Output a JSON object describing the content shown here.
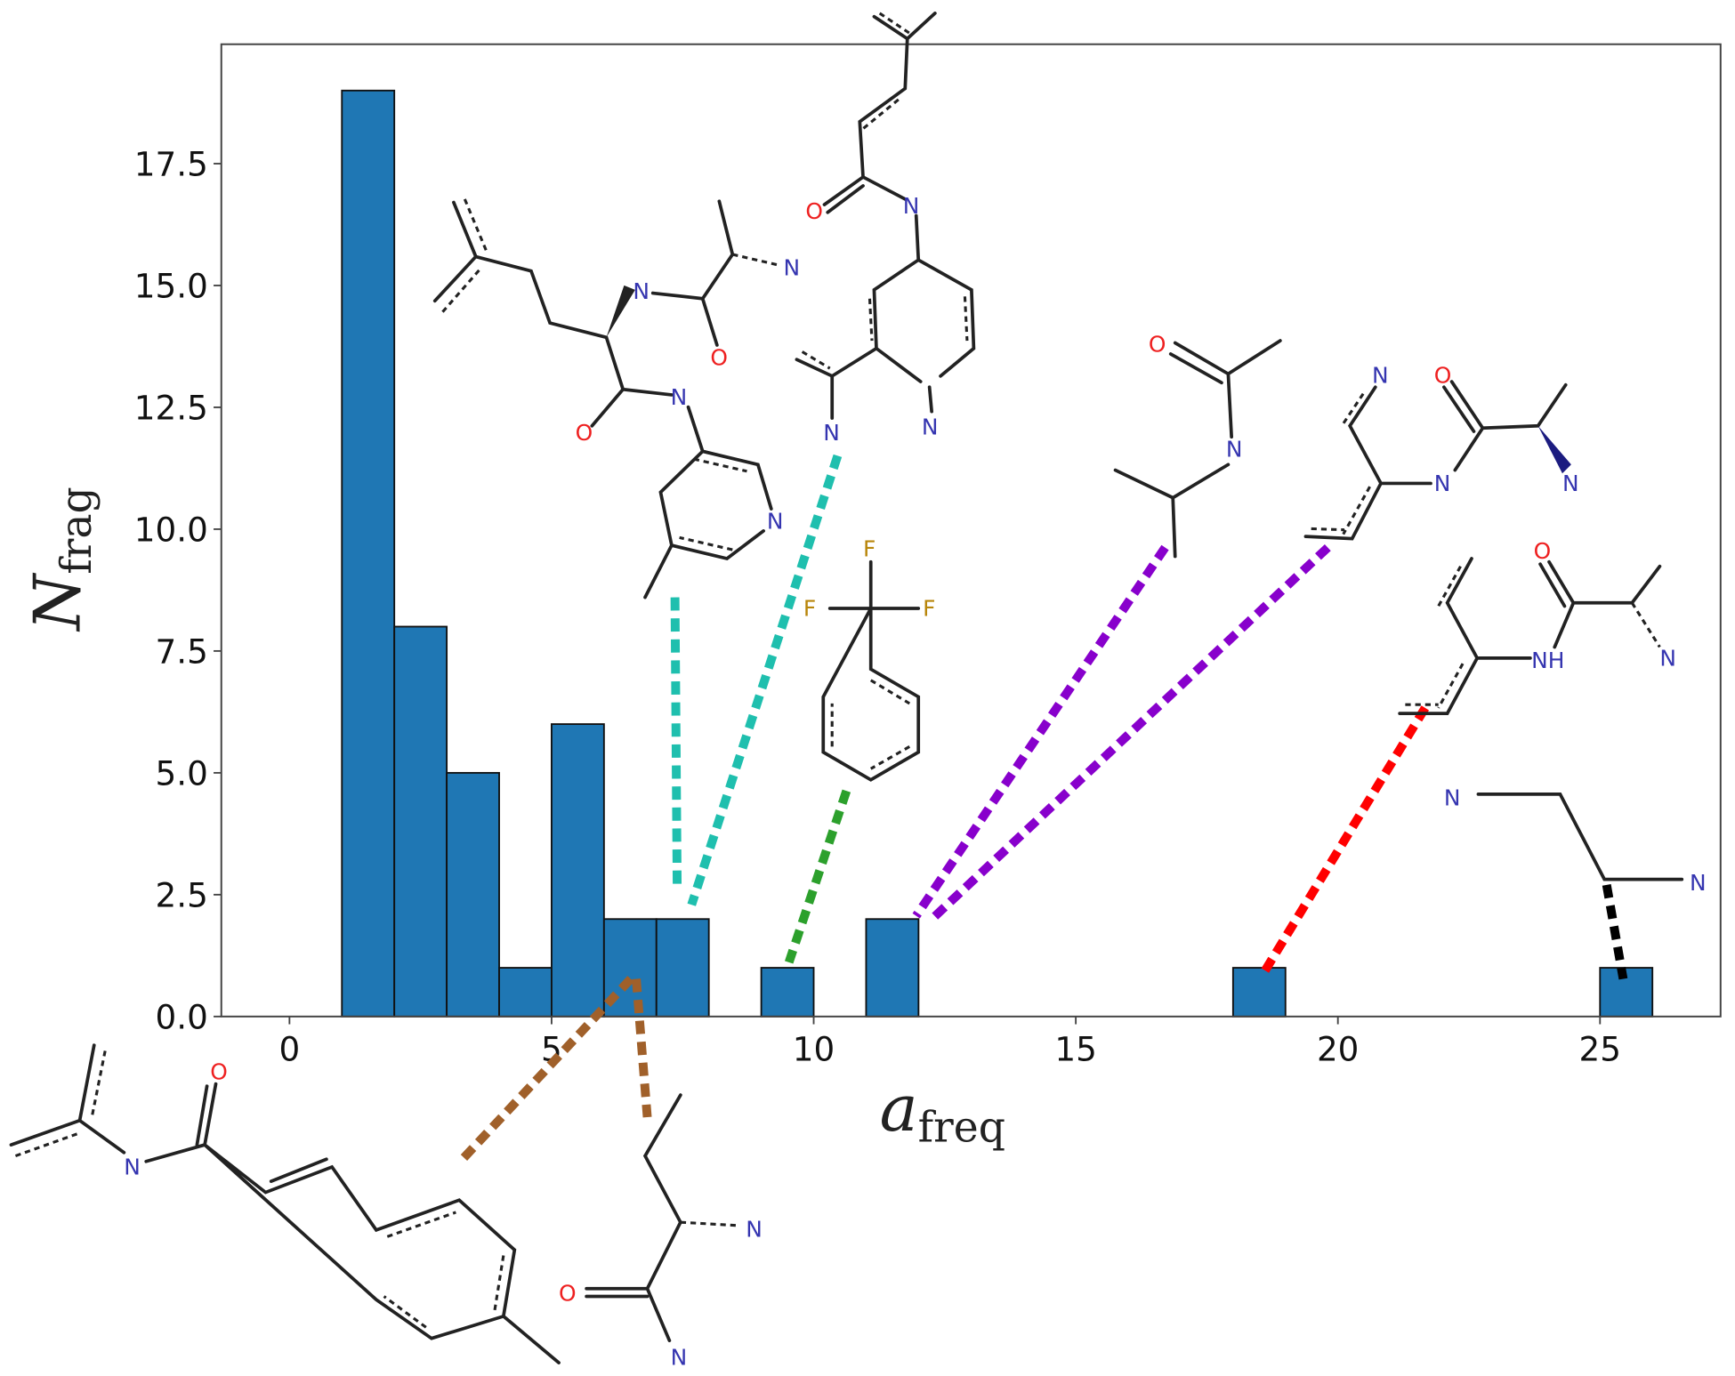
{
  "chart_data": {
    "type": "bar",
    "title": "",
    "xlabel_main": "a",
    "xlabel_sub": "freq",
    "ylabel_main": "N",
    "ylabel_sub": "frag",
    "xlim": [
      -1.3,
      27.3
    ],
    "ylim": [
      0,
      19.95
    ],
    "grid": false,
    "bar_color": "#1f77b4",
    "bins": [
      {
        "start": 1,
        "end": 2,
        "value": 19
      },
      {
        "start": 2,
        "end": 3,
        "value": 8
      },
      {
        "start": 3,
        "end": 4,
        "value": 5
      },
      {
        "start": 4,
        "end": 5,
        "value": 1
      },
      {
        "start": 5,
        "end": 6,
        "value": 6
      },
      {
        "start": 6,
        "end": 7,
        "value": 2
      },
      {
        "start": 7,
        "end": 8,
        "value": 2
      },
      {
        "start": 9,
        "end": 10,
        "value": 1
      },
      {
        "start": 11,
        "end": 12,
        "value": 2
      },
      {
        "start": 18,
        "end": 19,
        "value": 1
      },
      {
        "start": 25,
        "end": 26,
        "value": 1
      }
    ],
    "xticks": [
      "0",
      "5",
      "10",
      "15",
      "20",
      "25"
    ],
    "xtick_values": [
      0,
      5,
      10,
      15,
      20,
      25
    ],
    "yticks": [
      "0.0",
      "2.5",
      "5.0",
      "7.5",
      "10.0",
      "12.5",
      "15.0",
      "17.5"
    ],
    "ytick_values": [
      0,
      2.5,
      5,
      7.5,
      10,
      12.5,
      15,
      17.5
    ]
  },
  "connector_colors": {
    "teal": "#1fbfae",
    "green": "#2ca02c",
    "purple": "#8800cc",
    "red": "#ff0000",
    "black": "#000000",
    "brown": "#a0602a"
  },
  "fragments": {
    "a": [
      "N",
      "N",
      "O",
      "O",
      "N",
      "N"
    ],
    "b": [
      "O",
      "N",
      "N",
      "N"
    ],
    "c": [
      "F",
      "F",
      "F"
    ],
    "d": [
      "O",
      "N"
    ],
    "e": [
      "N",
      "N",
      "O",
      "N"
    ],
    "f": [
      "O",
      "NH",
      "N"
    ],
    "g": [
      "N",
      "N"
    ],
    "h": [
      "O",
      "N"
    ],
    "i": [
      "N",
      "O",
      "N"
    ]
  }
}
